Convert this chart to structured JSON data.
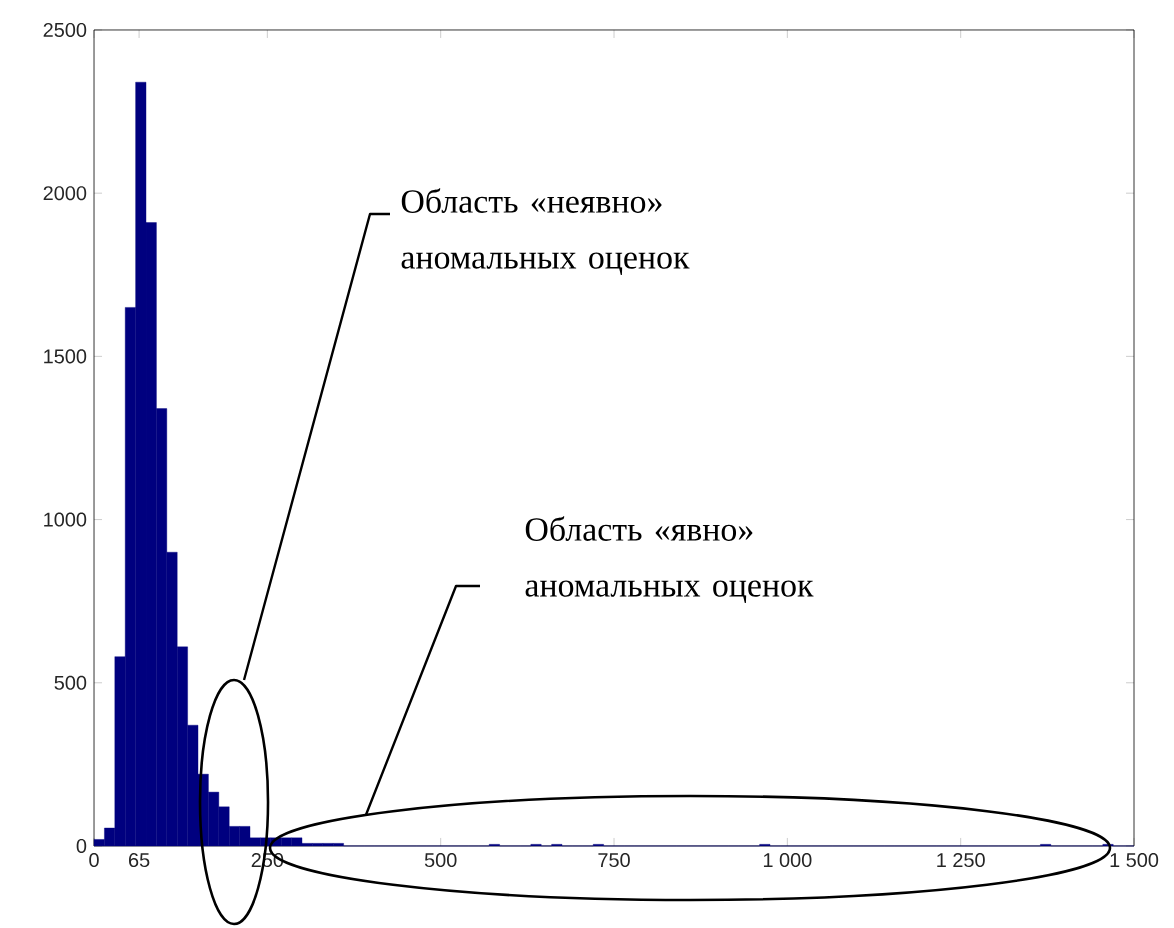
{
  "chart_data": {
    "type": "histogram",
    "color": "#00007f",
    "bins": [
      0,
      15,
      30,
      45,
      60,
      75,
      90,
      105,
      120,
      135,
      150,
      165,
      180,
      195,
      210,
      225,
      240,
      255,
      270,
      285,
      300,
      315,
      330,
      345,
      360,
      375,
      390,
      405,
      420,
      435,
      450,
      465,
      480,
      495,
      510,
      525,
      540,
      555,
      570,
      585,
      600,
      615,
      630,
      645,
      660,
      675,
      690,
      705,
      720,
      735,
      750,
      765,
      780,
      795,
      810,
      825,
      840,
      855,
      870,
      885,
      900,
      915,
      930,
      945,
      960,
      975,
      990,
      1005,
      1020,
      1035,
      1050,
      1065,
      1080,
      1095,
      1110,
      1125,
      1140,
      1155,
      1170,
      1185,
      1200,
      1215,
      1230,
      1245,
      1260,
      1275,
      1290,
      1305,
      1320,
      1335,
      1350,
      1365,
      1380,
      1395,
      1410,
      1425,
      1440,
      1455,
      1470,
      1485,
      1500
    ],
    "values": [
      20,
      55,
      580,
      1650,
      2340,
      1910,
      1340,
      900,
      610,
      370,
      220,
      165,
      120,
      60,
      60,
      25,
      25,
      25,
      25,
      25,
      8,
      8,
      8,
      8,
      0,
      0,
      0,
      0,
      0,
      0,
      0,
      0,
      0,
      0,
      0,
      0,
      0,
      0,
      5,
      0,
      0,
      0,
      5,
      0,
      5,
      0,
      0,
      0,
      5,
      0,
      0,
      0,
      0,
      0,
      0,
      0,
      0,
      0,
      0,
      0,
      0,
      0,
      0,
      0,
      5,
      0,
      0,
      0,
      0,
      0,
      0,
      0,
      0,
      0,
      0,
      0,
      0,
      0,
      0,
      0,
      0,
      0,
      0,
      0,
      0,
      0,
      0,
      0,
      0,
      0,
      0,
      5,
      0,
      0,
      0,
      0,
      0,
      5,
      0,
      0
    ],
    "xlim": [
      0,
      1500
    ],
    "ylim": [
      0,
      2500
    ],
    "xticks": [
      0,
      65,
      250,
      500,
      750,
      {
        "value": 1000,
        "label": "1 000"
      },
      {
        "value": 1250,
        "label": "1 250"
      },
      {
        "value": 1500,
        "label": "1 500"
      }
    ],
    "yticks": [
      0,
      500,
      1000,
      1500,
      2000,
      2500
    ],
    "grid": false,
    "annotations": [
      "Область «неявно» аномальных оценок",
      "Область «явно» аномальных оценок"
    ]
  }
}
